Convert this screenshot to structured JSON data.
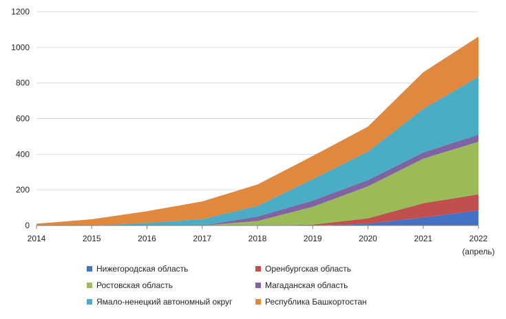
{
  "chart_data": {
    "type": "area",
    "stacked": true,
    "x": [
      "2014",
      "2015",
      "2016",
      "2017",
      "2018",
      "2019",
      "2020",
      "2021",
      "2022"
    ],
    "x_sublabels": [
      "",
      "",
      "",
      "",
      "",
      "",
      "",
      "",
      "(апрель)"
    ],
    "ylim": [
      0,
      1200
    ],
    "yticks": [
      0,
      200,
      400,
      600,
      800,
      1000,
      1200
    ],
    "grid": true,
    "legend_position": "bottom",
    "series": [
      {
        "name": "Нижегородская область",
        "color": "#4472C4",
        "values": [
          0,
          0,
          0,
          0,
          0,
          0,
          10,
          45,
          85
        ]
      },
      {
        "name": "Оренбургская область",
        "color": "#C0504D",
        "values": [
          0,
          0,
          0,
          0,
          0,
          5,
          30,
          80,
          90
        ]
      },
      {
        "name": "Ростовская область",
        "color": "#9BBB59",
        "values": [
          0,
          0,
          0,
          0,
          25,
          100,
          180,
          250,
          295
        ]
      },
      {
        "name": "Магаданская область",
        "color": "#8064A2",
        "values": [
          0,
          0,
          0,
          0,
          25,
          35,
          35,
          35,
          40
        ]
      },
      {
        "name": "Ямало-ненецкий автономный округ",
        "color": "#4BACC6",
        "values": [
          0,
          0,
          15,
          35,
          60,
          120,
          160,
          245,
          325
        ]
      },
      {
        "name": "Республика Башкортостан",
        "color": "#E0883E",
        "values": [
          10,
          35,
          65,
          100,
          120,
          130,
          140,
          205,
          225
        ]
      }
    ]
  }
}
